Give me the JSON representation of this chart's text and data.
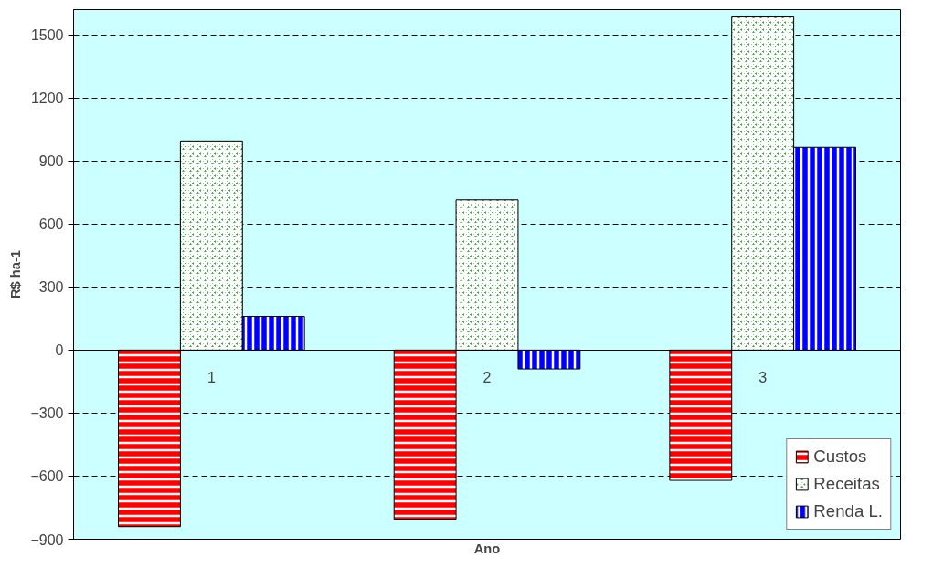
{
  "chart_data": {
    "type": "bar",
    "xlabel": "Ano",
    "ylabel": "R$ ha-1",
    "categories": [
      "1",
      "2",
      "3"
    ],
    "series": [
      {
        "name": "Custos",
        "color": "#ff0000",
        "values": [
          -840,
          -805,
          -620
        ]
      },
      {
        "name": "Receitas",
        "color": "#008000",
        "values": [
          995,
          715,
          1585
        ]
      },
      {
        "name": "Renda L.",
        "color": "#0000ff",
        "values": [
          160,
          -90,
          965
        ]
      }
    ],
    "ylim": [
      -900,
      1620
    ],
    "yticks": [
      -900,
      -600,
      -300,
      0,
      300,
      600,
      900,
      1200,
      1500
    ],
    "grid": "y",
    "legend": "bottom right"
  }
}
